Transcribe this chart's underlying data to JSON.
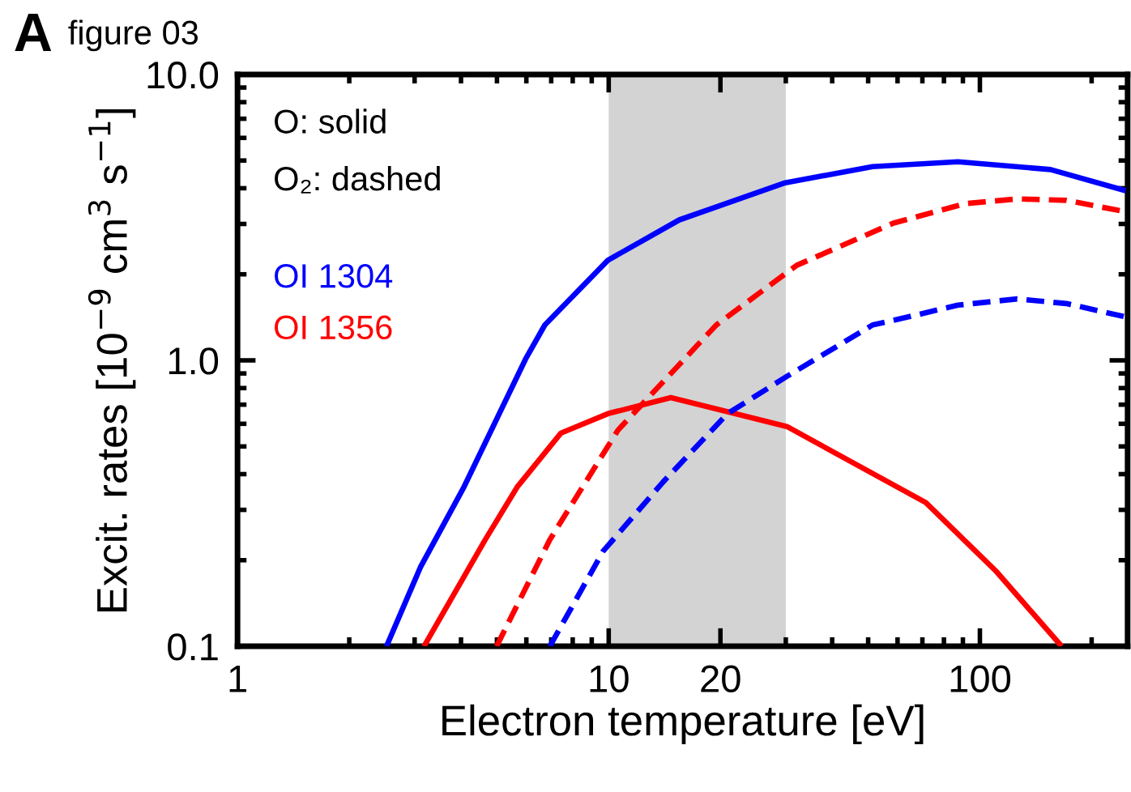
{
  "chart_data": {
    "type": "line",
    "xlabel": "Electron temperature [eV]",
    "ylabel": "Excit. rates [10$^{−9}$ cm$^{3}$ s$^{−1}$]",
    "annotations": [
      "A",
      "figure 03",
      "O: solid",
      "O₂: dashed"
    ],
    "log": "xy",
    "xlim": [
      1,
      250
    ],
    "xticks": [
      1,
      10,
      20,
      100
    ],
    "ylim": [
      0.1,
      10
    ],
    "yticks": [
      {
        "value": 0.1,
        "label": "0.1"
      },
      {
        "value": 1,
        "label": "1.0"
      },
      {
        "value": 10,
        "label": "10.0"
      }
    ],
    "bands": [
      {
        "axis": "x",
        "from": 10,
        "to": 30,
        "color": "#d3d3d3"
      }
    ],
    "grid": false,
    "legend": "top left",
    "series": [
      {
        "name": "OI 1304",
        "color": "#0000ff",
        "line_style": "solid",
        "x": [
          2.52,
          3.11,
          4.08,
          5.97,
          6.73,
          9.95,
          15.5,
          29.9,
          51.4,
          87.3,
          155,
          247
        ],
        "values": [
          0.1,
          0.189,
          0.362,
          1.01,
          1.33,
          2.24,
          3.1,
          4.18,
          4.76,
          4.95,
          4.65,
          3.92
        ]
      },
      {
        "name": "OI 1356",
        "color": "#ff0000",
        "line_style": "solid",
        "x": [
          3.18,
          4.65,
          5.68,
          7.44,
          9.95,
          14.7,
          30.2,
          71.5,
          111,
          166
        ],
        "values": [
          0.1,
          0.236,
          0.362,
          0.557,
          0.651,
          0.741,
          0.587,
          0.318,
          0.182,
          0.1
        ]
      },
      {
        "color": "#ff0000",
        "line_style": "dashed",
        "x": [
          4.99,
          6.94,
          10.6,
          19.5,
          32.1,
          58.5,
          90.9,
          126,
          171,
          247
        ],
        "values": [
          0.1,
          0.236,
          0.571,
          1.33,
          2.15,
          3.02,
          3.53,
          3.67,
          3.63,
          3.31
        ]
      },
      {
        "color": "#0000ff",
        "line_style": "dashed",
        "x": [
          6.94,
          9.66,
          14.0,
          20.9,
          30.2,
          51.4,
          58.5,
          87.3,
          126,
          171,
          247
        ],
        "values": [
          0.1,
          0.215,
          0.375,
          0.651,
          0.879,
          1.33,
          1.38,
          1.56,
          1.64,
          1.58,
          1.42
        ]
      }
    ]
  }
}
